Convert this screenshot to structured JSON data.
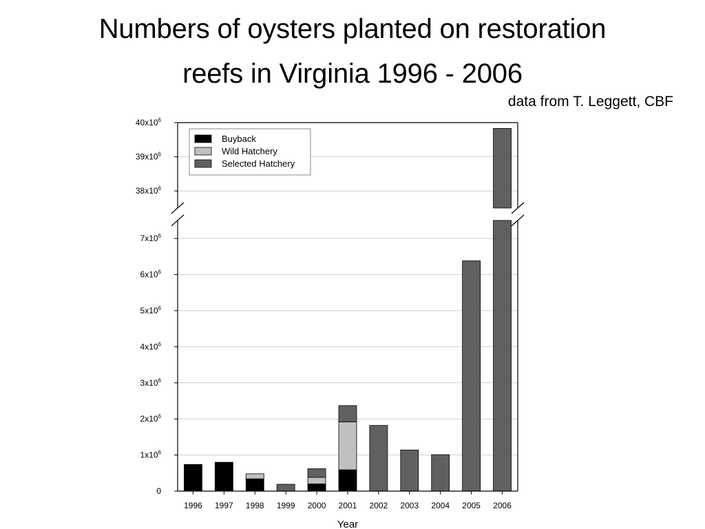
{
  "title_line1": "Numbers of oysters planted on restoration",
  "title_line2": "reefs in Virginia 1996 - 2006",
  "source_note": "data from T. Leggett, CBF",
  "chart_data": {
    "type": "bar",
    "stacked": true,
    "title": "Numbers of oysters planted on restoration reefs in Virginia 1996 - 2006",
    "xlabel": "Year",
    "ylabel": "",
    "categories": [
      "1996",
      "1997",
      "1998",
      "1999",
      "2000",
      "2001",
      "2002",
      "2003",
      "2004",
      "2005",
      "2006"
    ],
    "series": [
      {
        "name": "Buyback",
        "color": "#000000",
        "values": [
          740000,
          800000,
          340000,
          0,
          200000,
          590000,
          0,
          0,
          0,
          0,
          0
        ]
      },
      {
        "name": "Wild Hatchery",
        "color": "#c0c0c0",
        "values": [
          0,
          0,
          140000,
          0,
          180000,
          1330000,
          0,
          0,
          0,
          0,
          0
        ]
      },
      {
        "name": "Selected Hatchery",
        "color": "#606060",
        "values": [
          0,
          0,
          0,
          190000,
          240000,
          450000,
          1820000,
          1140000,
          1010000,
          6380000,
          39830000
        ]
      }
    ],
    "yaxis_lower": {
      "range": [
        0,
        7500000
      ],
      "ticks": [
        {
          "value": 0,
          "base": "0",
          "exp": ""
        },
        {
          "value": 1000000,
          "base": "1x10",
          "exp": "6"
        },
        {
          "value": 2000000,
          "base": "2x10",
          "exp": "6"
        },
        {
          "value": 3000000,
          "base": "3x10",
          "exp": "6"
        },
        {
          "value": 4000000,
          "base": "4x10",
          "exp": "6"
        },
        {
          "value": 5000000,
          "base": "5x10",
          "exp": "6"
        },
        {
          "value": 6000000,
          "base": "6x10",
          "exp": "6"
        },
        {
          "value": 7000000,
          "base": "7x10",
          "exp": "6"
        }
      ]
    },
    "yaxis_upper": {
      "range": [
        37500000,
        40000000
      ],
      "ticks": [
        {
          "value": 38000000,
          "base": "38x10",
          "exp": "6"
        },
        {
          "value": 39000000,
          "base": "39x10",
          "exp": "6"
        },
        {
          "value": 40000000,
          "base": "40x10",
          "exp": "6"
        }
      ]
    },
    "axis_break": true,
    "grid": true,
    "legend": "top-left"
  }
}
